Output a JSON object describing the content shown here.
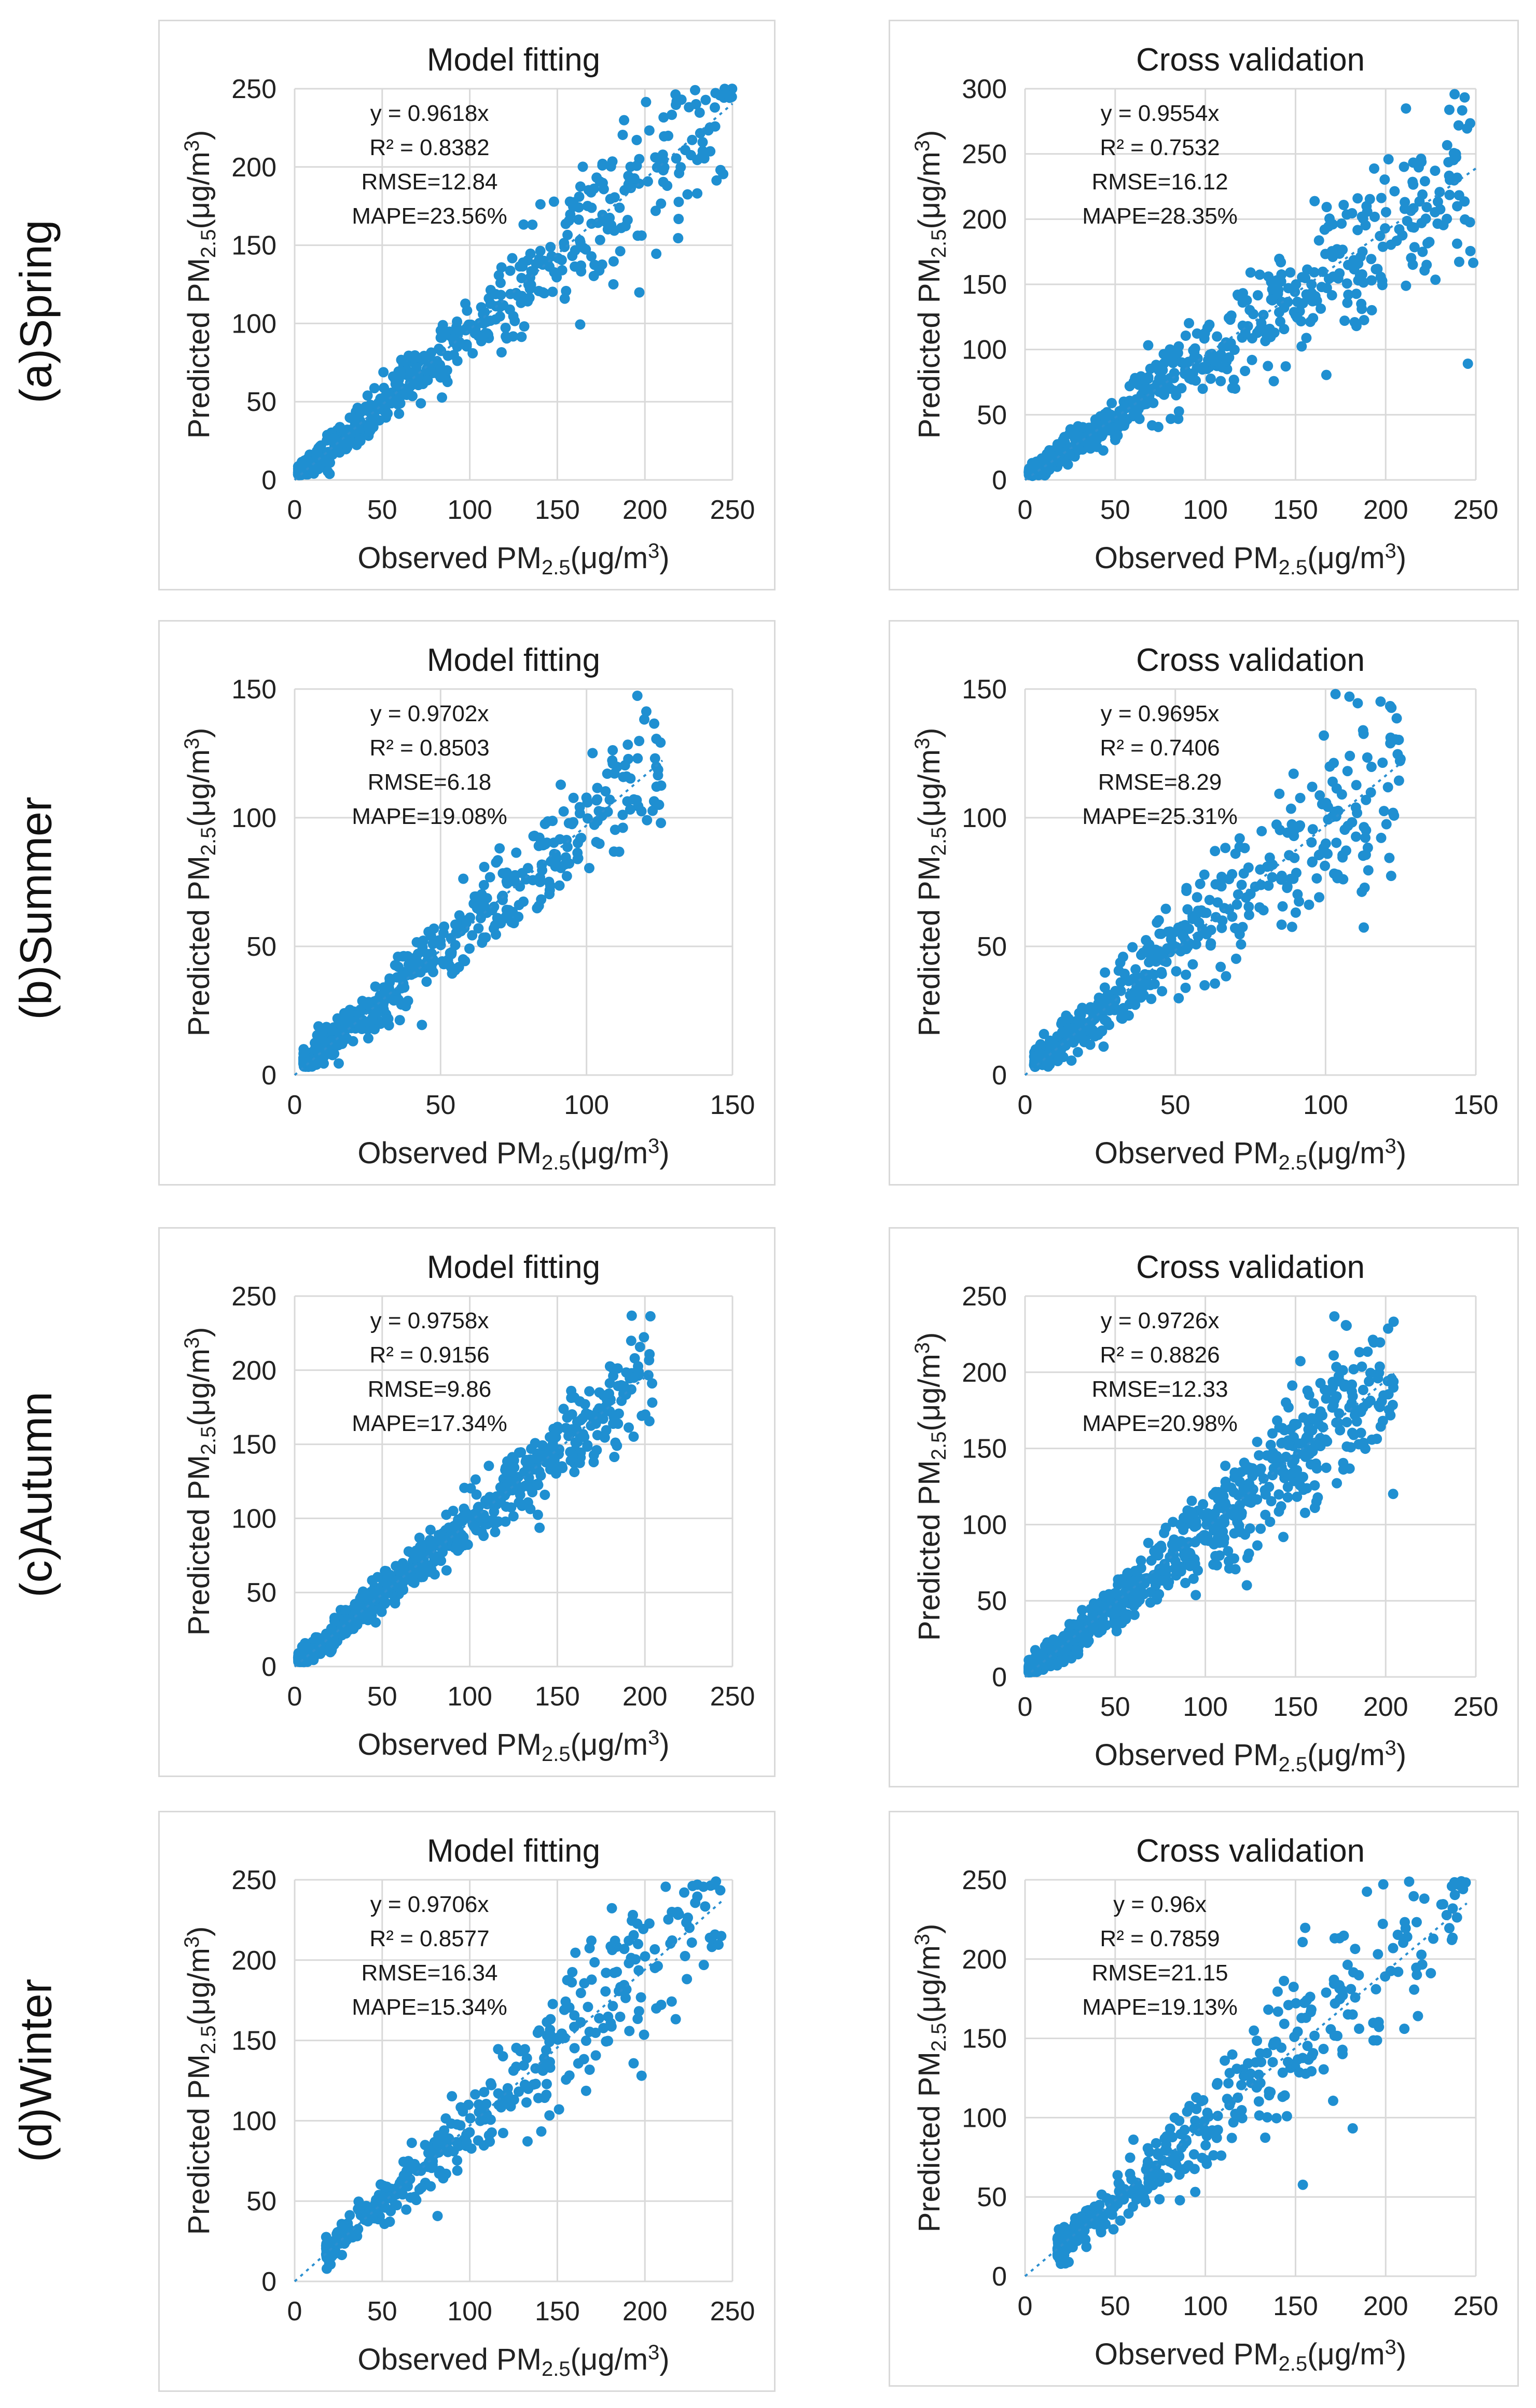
{
  "row_labels": [
    "(a)Spring",
    "(b)Summer",
    "(c)Autumn",
    "(d)Winter"
  ],
  "colors": {
    "points": "#1f8fd1",
    "trendline": "#2b8fd0",
    "grid": "#d9d9d9"
  },
  "common": {
    "xlabel": "Observed PM",
    "ylabel": "Predicted PM",
    "subscript": "2.5",
    "unit": "(μg/m",
    "unit_sup": "3",
    "unit_close": ")"
  },
  "chart_data": [
    {
      "type": "scatter",
      "season": "Spring",
      "title": "Model fitting",
      "xlim": [
        0,
        250
      ],
      "ylim": [
        0,
        250
      ],
      "xticks": [
        0,
        50,
        100,
        150,
        200,
        250
      ],
      "yticks": [
        0,
        50,
        100,
        150,
        200,
        250
      ],
      "slope": 0.9618,
      "stats": [
        "y = 0.9618x",
        "R² = 0.8382",
        "RMSE=12.84",
        "MAPE=23.56%"
      ],
      "n": 560,
      "noise": 0.13,
      "xmin": 2,
      "xmax": 250
    },
    {
      "type": "scatter",
      "season": "Spring",
      "title": "Cross validation",
      "xlim": [
        0,
        250
      ],
      "ylim": [
        0,
        300
      ],
      "xticks": [
        0,
        50,
        100,
        150,
        200,
        250
      ],
      "yticks": [
        0,
        50,
        100,
        150,
        200,
        250,
        300
      ],
      "slope": 0.9554,
      "stats": [
        "y = 0.9554x",
        "R² = 0.7532",
        "RMSE=16.12",
        "MAPE=28.35%"
      ],
      "n": 560,
      "noise": 0.18,
      "xmin": 2,
      "xmax": 250
    },
    {
      "type": "scatter",
      "season": "Summer",
      "title": "Model fitting",
      "xlim": [
        0,
        150
      ],
      "ylim": [
        0,
        150
      ],
      "xticks": [
        0,
        50,
        100,
        150
      ],
      "yticks": [
        0,
        50,
        100,
        150
      ],
      "slope": 0.9702,
      "stats": [
        "y = 0.9702x",
        "R² = 0.8503",
        "RMSE=6.18",
        "MAPE=19.08%"
      ],
      "n": 460,
      "noise": 0.12,
      "xmin": 3,
      "xmax": 126
    },
    {
      "type": "scatter",
      "season": "Summer",
      "title": "Cross validation",
      "xlim": [
        0,
        150
      ],
      "ylim": [
        0,
        150
      ],
      "xticks": [
        0,
        50,
        100,
        150
      ],
      "yticks": [
        0,
        50,
        100,
        150
      ],
      "slope": 0.9695,
      "stats": [
        "y = 0.9695x",
        "R² = 0.7406",
        "RMSE=8.29",
        "MAPE=25.31%"
      ],
      "n": 460,
      "noise": 0.17,
      "xmin": 3,
      "xmax": 126
    },
    {
      "type": "scatter",
      "season": "Autumn",
      "title": "Model fitting",
      "xlim": [
        0,
        250
      ],
      "ylim": [
        0,
        250
      ],
      "xticks": [
        0,
        50,
        100,
        150,
        200,
        250
      ],
      "yticks": [
        0,
        50,
        100,
        150,
        200,
        250
      ],
      "slope": 0.9758,
      "stats": [
        "y = 0.9758x",
        "R² = 0.9156",
        "RMSE=9.86",
        "MAPE=17.34%"
      ],
      "n": 700,
      "noise": 0.1,
      "xmin": 2,
      "xmax": 205
    },
    {
      "type": "scatter",
      "season": "Autumn",
      "title": "Cross validation",
      "xlim": [
        0,
        250
      ],
      "ylim": [
        0,
        250
      ],
      "xticks": [
        0,
        50,
        100,
        150,
        200,
        250
      ],
      "yticks": [
        0,
        50,
        100,
        150,
        200,
        250
      ],
      "slope": 0.9726,
      "stats": [
        "y = 0.9726x",
        "R² = 0.8826",
        "RMSE=12.33",
        "MAPE=20.98%"
      ],
      "n": 700,
      "noise": 0.14,
      "xmin": 2,
      "xmax": 205
    },
    {
      "type": "scatter",
      "season": "Winter",
      "title": "Model fitting",
      "xlim": [
        0,
        250
      ],
      "ylim": [
        0,
        250
      ],
      "xticks": [
        0,
        50,
        100,
        150,
        200,
        250
      ],
      "yticks": [
        0,
        50,
        100,
        150,
        200,
        250
      ],
      "slope": 0.9706,
      "stats": [
        "y = 0.9706x",
        "R² = 0.8577",
        "RMSE=16.34",
        "MAPE=15.34%"
      ],
      "n": 380,
      "noise": 0.13,
      "xmin": 18,
      "xmax": 245
    },
    {
      "type": "scatter",
      "season": "Winter",
      "title": "Cross validation",
      "xlim": [
        0,
        250
      ],
      "ylim": [
        0,
        250
      ],
      "xticks": [
        0,
        50,
        100,
        150,
        200,
        250
      ],
      "yticks": [
        0,
        50,
        100,
        150,
        200,
        250
      ],
      "slope": 0.96,
      "stats": [
        "y = 0.96x",
        "R² = 0.7859",
        "RMSE=21.15",
        "MAPE=19.13%"
      ],
      "n": 380,
      "noise": 0.16,
      "xmin": 18,
      "xmax": 245
    }
  ]
}
